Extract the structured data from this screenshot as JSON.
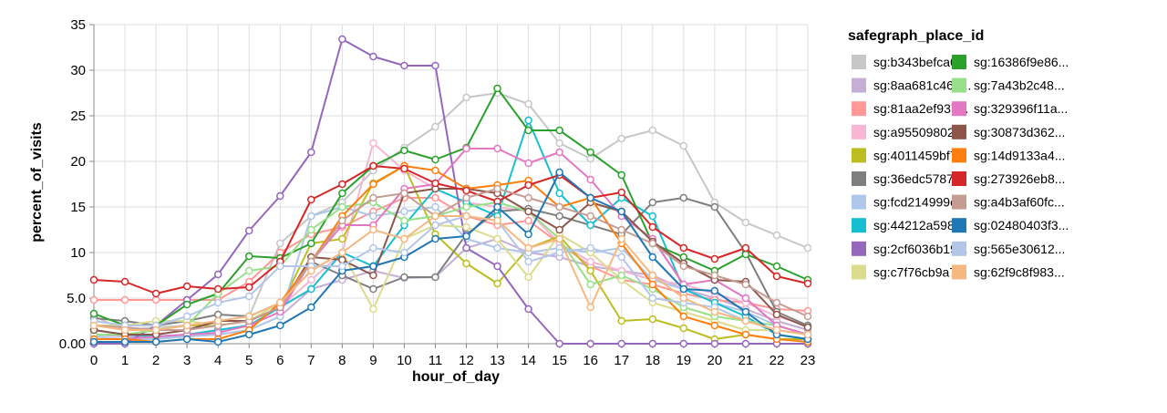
{
  "chart_data": {
    "type": "line",
    "title": "",
    "xlabel": "hour_of_day",
    "ylabel": "percent_of_visits",
    "x": [
      0,
      1,
      2,
      3,
      4,
      5,
      6,
      7,
      8,
      9,
      10,
      11,
      12,
      13,
      14,
      15,
      16,
      17,
      18,
      19,
      20,
      21,
      22,
      23
    ],
    "ylim": [
      0,
      35
    ],
    "yticks": [
      "0.00",
      "5.0",
      "10",
      "15",
      "20",
      "25",
      "30",
      "35"
    ],
    "grid": true,
    "legend_title": "safegraph_place_id",
    "legend_position": "right",
    "series": [
      {
        "name": "sg:b343befca0...",
        "color": "#c7c7c7",
        "values": [
          3.0,
          1.5,
          1.8,
          2.0,
          2.5,
          3.0,
          11.0,
          14.0,
          15.5,
          19.0,
          21.5,
          23.8,
          27.0,
          27.5,
          26.3,
          22.0,
          20.3,
          22.5,
          23.4,
          21.7,
          15.5,
          13.3,
          11.9,
          10.5
        ]
      },
      {
        "name": "sg:8aa681c465...",
        "color": "#c5b0d5",
        "values": [
          1.0,
          0.8,
          0.6,
          0.8,
          1.0,
          1.5,
          3.0,
          6.0,
          7.0,
          8.0,
          7.2,
          7.3,
          10.5,
          11.5,
          10.0,
          9.5,
          8.5,
          8.0,
          7.5,
          6.0,
          5.0,
          3.8,
          2.5,
          1.5
        ]
      },
      {
        "name": "sg:81aa2ef937...",
        "color": "#ff9896",
        "values": [
          4.8,
          4.8,
          4.8,
          4.8,
          4.8,
          6.8,
          10.0,
          12.0,
          12.8,
          14.5,
          16.0,
          16.0,
          14.0,
          13.0,
          13.5,
          11.0,
          8.5,
          7.0,
          6.5,
          5.5,
          4.8,
          4.5,
          3.8,
          3.6
        ]
      },
      {
        "name": "sg:a95509802...",
        "color": "#f7b6d2",
        "values": [
          0.5,
          0.5,
          0.8,
          1.0,
          1.5,
          2.0,
          4.0,
          7.0,
          10.0,
          22.0,
          19.0,
          17.0,
          15.5,
          15.0,
          14.5,
          11.0,
          9.0,
          8.0,
          7.0,
          6.5,
          5.5,
          4.5,
          3.0,
          2.0
        ]
      },
      {
        "name": "sg:4011459bf7...",
        "color": "#bcbd22",
        "values": [
          1.5,
          1.0,
          1.5,
          2.0,
          2.0,
          2.5,
          4.0,
          11.0,
          11.5,
          17.6,
          19.5,
          12.0,
          8.8,
          6.6,
          10.5,
          11.8,
          8.0,
          2.5,
          2.7,
          1.7,
          0.5,
          1.0,
          0.5,
          0.5
        ]
      },
      {
        "name": "sg:36edc5787...",
        "color": "#7f7f7f",
        "values": [
          2.8,
          2.5,
          2.0,
          2.5,
          3.2,
          3.0,
          4.5,
          9.0,
          7.5,
          6.0,
          7.3,
          7.3,
          12.0,
          14.5,
          14.8,
          14.0,
          13.0,
          12.0,
          15.5,
          16.0,
          15.0,
          10.0,
          3.5,
          2.0
        ]
      },
      {
        "name": "sg:fcd214999c...",
        "color": "#aec7e8",
        "values": [
          0.8,
          0.5,
          0.5,
          0.8,
          1.0,
          1.5,
          3.0,
          14.0,
          15.0,
          14.0,
          14.5,
          15.0,
          11.5,
          10.5,
          10.0,
          10.5,
          10.0,
          10.5,
          7.0,
          6.0,
          4.5,
          3.5,
          2.0,
          1.0
        ]
      },
      {
        "name": "sg:44212a598...",
        "color": "#17becf",
        "values": [
          1.5,
          1.0,
          0.8,
          1.0,
          1.5,
          2.0,
          4.0,
          6.0,
          10.0,
          8.5,
          13.0,
          17.0,
          15.5,
          14.0,
          24.5,
          16.5,
          13.0,
          16.0,
          14.0,
          6.0,
          4.5,
          3.0,
          1.0,
          0.5
        ]
      },
      {
        "name": "sg:2cf6036b19...",
        "color": "#9467bd",
        "values": [
          0.0,
          0.0,
          2.0,
          4.8,
          7.6,
          12.4,
          16.2,
          21.0,
          33.4,
          31.5,
          30.5,
          30.5,
          10.5,
          8.5,
          3.8,
          0.0,
          0.0,
          0.0,
          0.0,
          0.0,
          0.0,
          0.0,
          0.0,
          0.0
        ]
      },
      {
        "name": "sg:c7f76cb9a7...",
        "color": "#dbdb8d",
        "values": [
          2.0,
          2.0,
          2.5,
          2.5,
          2.0,
          2.5,
          4.5,
          8.0,
          10.0,
          3.8,
          11.5,
          13.0,
          12.8,
          11.5,
          7.3,
          12.0,
          10.0,
          7.0,
          4.5,
          3.5,
          2.5,
          1.5,
          1.5,
          1.0
        ]
      },
      {
        "name": "sg:16386f9e86...",
        "color": "#2ca02c",
        "values": [
          3.3,
          2.0,
          2.0,
          4.3,
          5.5,
          9.6,
          9.4,
          11.0,
          16.5,
          19.5,
          21.2,
          20.2,
          21.5,
          28.0,
          23.4,
          23.4,
          21.0,
          18.5,
          11.0,
          9.5,
          8.0,
          9.8,
          8.5,
          7.0
        ]
      },
      {
        "name": "sg:7a43b2c48...",
        "color": "#98df8a",
        "values": [
          1.0,
          1.0,
          1.5,
          2.0,
          5.5,
          8.0,
          8.5,
          12.5,
          15.0,
          15.5,
          13.5,
          14.0,
          15.0,
          15.5,
          14.5,
          11.5,
          6.5,
          7.5,
          6.0,
          4.0,
          3.0,
          2.5,
          2.0,
          1.0
        ]
      },
      {
        "name": "sg:329396f11a...",
        "color": "#e377c2",
        "values": [
          0.5,
          0.5,
          0.8,
          1.0,
          1.2,
          2.0,
          3.5,
          9.0,
          13.0,
          13.0,
          17.0,
          17.5,
          21.4,
          21.4,
          19.8,
          21.0,
          18.0,
          14.0,
          11.5,
          6.5,
          7.0,
          5.0,
          2.0,
          1.0
        ]
      },
      {
        "name": "sg:30873d362...",
        "color": "#8c564b",
        "values": [
          1.5,
          1.0,
          1.0,
          1.5,
          2.5,
          2.5,
          4.0,
          9.5,
          9.2,
          7.5,
          16.5,
          17.0,
          17.0,
          16.5,
          14.5,
          12.5,
          15.5,
          14.5,
          11.2,
          8.8,
          7.0,
          6.8,
          3.2,
          1.8
        ]
      },
      {
        "name": "sg:14d9133a4...",
        "color": "#ff7f0e",
        "values": [
          0.5,
          0.5,
          0.2,
          0.5,
          0.5,
          1.5,
          4.5,
          9.0,
          14.0,
          17.5,
          19.5,
          19.0,
          17.0,
          17.4,
          17.9,
          15.0,
          16.0,
          11.0,
          6.5,
          3.0,
          2.0,
          1.0,
          0.5,
          0.2
        ]
      },
      {
        "name": "sg:273926eb8...",
        "color": "#d62728",
        "values": [
          7.0,
          6.8,
          5.5,
          6.3,
          6.0,
          6.2,
          9.0,
          15.8,
          17.5,
          19.5,
          19.2,
          17.6,
          16.8,
          15.6,
          17.4,
          18.5,
          16.0,
          16.6,
          12.8,
          10.5,
          9.3,
          10.5,
          7.4,
          6.6
        ]
      },
      {
        "name": "sg:a4b3af60fc...",
        "color": "#c49c94",
        "values": [
          2.0,
          1.8,
          1.5,
          1.5,
          2.0,
          2.5,
          4.0,
          9.0,
          13.5,
          16.0,
          16.5,
          14.0,
          16.0,
          17.0,
          16.0,
          15.0,
          14.0,
          12.5,
          11.0,
          8.5,
          7.5,
          6.5,
          4.5,
          3.0
        ]
      },
      {
        "name": "sg:02480403f3...",
        "color": "#1f77b4",
        "values": [
          0.2,
          0.2,
          0.2,
          0.5,
          0.2,
          1.0,
          2.0,
          4.0,
          8.0,
          8.5,
          9.5,
          11.5,
          11.8,
          15.0,
          12.0,
          18.8,
          16.0,
          14.5,
          9.5,
          6.0,
          5.8,
          3.5,
          1.0,
          0.5
        ]
      },
      {
        "name": "sg:565e30612...",
        "color": "#b3c6e8",
        "values": [
          2.5,
          2.0,
          2.0,
          3.0,
          4.5,
          5.2,
          8.5,
          8.5,
          8.5,
          10.5,
          10.0,
          13.0,
          14.0,
          13.5,
          9.0,
          10.0,
          10.5,
          9.5,
          5.0,
          4.5,
          4.0,
          2.5,
          1.5,
          1.0
        ]
      },
      {
        "name": "sg:62f9c8f983...",
        "color": "#f5b880",
        "values": [
          2.0,
          1.5,
          1.5,
          2.0,
          2.5,
          3.0,
          4.5,
          8.0,
          10.0,
          12.5,
          11.5,
          14.0,
          14.0,
          13.5,
          10.5,
          11.5,
          4.0,
          11.5,
          7.5,
          5.0,
          3.5,
          2.5,
          1.5,
          1.0
        ]
      }
    ]
  }
}
